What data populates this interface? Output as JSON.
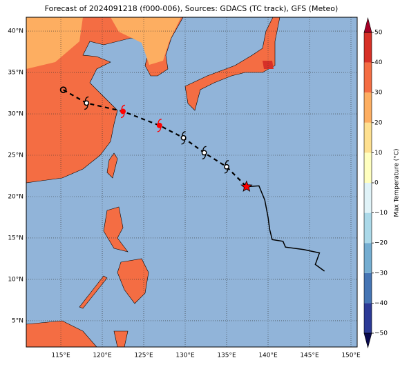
{
  "chart_data": {
    "type": "track-map",
    "title": "Forecast of 2024091218 (f000-006), Sources: GDACS (TC track), GFS (Meteo)",
    "xlim": [
      110.83,
      150.75
    ],
    "ylim": [
      1.83,
      41.67
    ],
    "xticks": [
      {
        "value": 115,
        "label": "115°E"
      },
      {
        "value": 120,
        "label": "120°E"
      },
      {
        "value": 125,
        "label": "125°E"
      },
      {
        "value": 130,
        "label": "130°E"
      },
      {
        "value": 135,
        "label": "135°E"
      },
      {
        "value": 140,
        "label": "140°E"
      },
      {
        "value": 145,
        "label": "145°E"
      },
      {
        "value": 150,
        "label": "150°E"
      }
    ],
    "yticks": [
      {
        "value": 5,
        "label": "5°N"
      },
      {
        "value": 10,
        "label": "10°N"
      },
      {
        "value": 15,
        "label": "15°N"
      },
      {
        "value": 20,
        "label": "20°N"
      },
      {
        "value": 25,
        "label": "25°N"
      },
      {
        "value": 30,
        "label": "30°N"
      },
      {
        "value": 35,
        "label": "35°N"
      },
      {
        "value": 40,
        "label": "40°N"
      }
    ],
    "grid": true,
    "series": [
      {
        "style": "dashed",
        "color": "#000000",
        "x": [
          115.3,
          118.1,
          122.5,
          126.9,
          129.8,
          132.3,
          135.0,
          137.4
        ],
        "values": [
          32.9,
          31.3,
          30.3,
          28.6,
          27.1,
          25.3,
          23.6,
          21.2
        ],
        "markers": [
          "circle",
          "cyclone",
          "cyclone",
          "cyclone",
          "cyclone",
          "cyclone",
          "cyclone",
          "star"
        ],
        "marker_colors": [
          "#000000",
          "#000000",
          "#ff0000",
          "#ff0000",
          "#000000",
          "#000000",
          "#000000",
          "#ff0000"
        ]
      },
      {
        "style": "solid",
        "color": "#000000",
        "x": [
          137.4,
          138.9,
          139.6,
          140.0,
          140.2,
          140.5,
          141.8,
          142.1,
          144.3,
          146.2,
          145.7,
          146.8
        ],
        "values": [
          21.2,
          21.3,
          19.6,
          17.5,
          16.0,
          14.8,
          14.6,
          13.9,
          13.6,
          13.2,
          11.8,
          11.0
        ]
      }
    ],
    "colorbar": {
      "label": "Max Temperature (°C)",
      "lim": [
        -50,
        50
      ],
      "ticks": [
        {
          "value": -50,
          "label": "−50"
        },
        {
          "value": -40,
          "label": "−40"
        },
        {
          "value": -30,
          "label": "−30"
        },
        {
          "value": -20,
          "label": "−20"
        },
        {
          "value": -10,
          "label": "−10"
        },
        0,
        10,
        20,
        30,
        40,
        50
      ],
      "colors": [
        "#2c3a96",
        "#4575b4",
        "#74add1",
        "#abd9e9",
        "#e0f3f8",
        "#ffffbf",
        "#fee090",
        "#fdae61",
        "#f46d43",
        "#d73027"
      ],
      "extend_colors": [
        "#0a0a50",
        "#a50026"
      ]
    }
  }
}
